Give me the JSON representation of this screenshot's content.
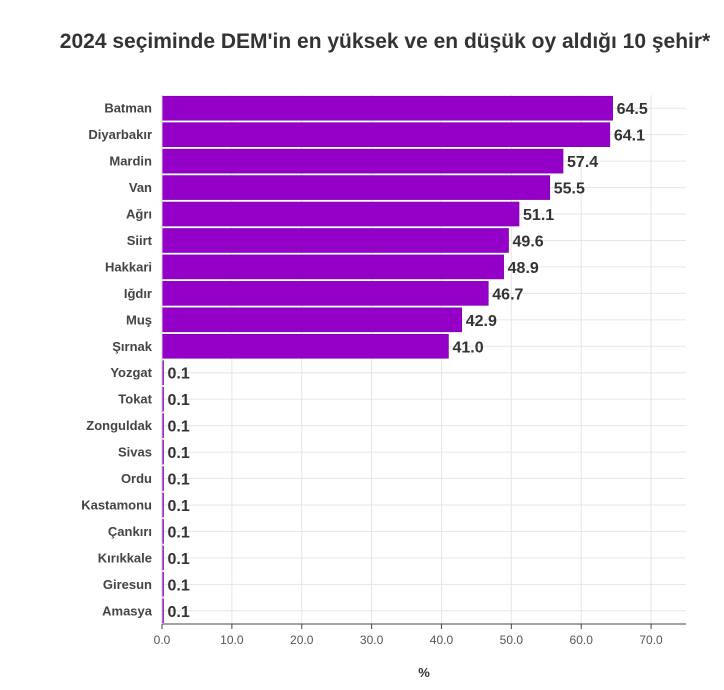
{
  "chart_data": {
    "type": "bar",
    "orientation": "horizontal",
    "title": "2024 seçiminde DEM'in en yüksek ve en düşük oy aldığı 10 şehir*",
    "categories": [
      "Batman",
      "Diyarbakır",
      "Mardin",
      "Van",
      "Ağrı",
      "Siirt",
      "Hakkari",
      "Iğdır",
      "Muş",
      "Şırnak",
      "Yozgat",
      "Tokat",
      "Zonguldak",
      "Sivas",
      "Ordu",
      "Kastamonu",
      "Çankırı",
      "Kırıkkale",
      "Giresun",
      "Amasya"
    ],
    "values": [
      64.5,
      64.1,
      57.4,
      55.5,
      51.1,
      49.6,
      48.9,
      46.7,
      42.9,
      41.0,
      0.1,
      0.1,
      0.1,
      0.1,
      0.1,
      0.1,
      0.1,
      0.1,
      0.1,
      0.1
    ],
    "value_labels": [
      "64.5",
      "64.1",
      "57.4",
      "55.5",
      "51.1",
      "49.6",
      "48.9",
      "46.7",
      "42.9",
      "41.0",
      "0.1",
      "0.1",
      "0.1",
      "0.1",
      "0.1",
      "0.1",
      "0.1",
      "0.1",
      "0.1",
      "0.1"
    ],
    "xlabel": "%",
    "ylabel": "",
    "xlim": [
      0,
      75
    ],
    "x_ticks": [
      0,
      10,
      20,
      30,
      40,
      50,
      60,
      70
    ],
    "x_tick_labels": [
      "0.0",
      "10.0",
      "20.0",
      "30.0",
      "40.0",
      "50.0",
      "60.0",
      "70.0"
    ],
    "grid": true,
    "colors": {
      "bar": "#9400c8",
      "bar_edge": "#7a00a8",
      "grid": "#e6e6e6",
      "axis": "#444444"
    }
  }
}
